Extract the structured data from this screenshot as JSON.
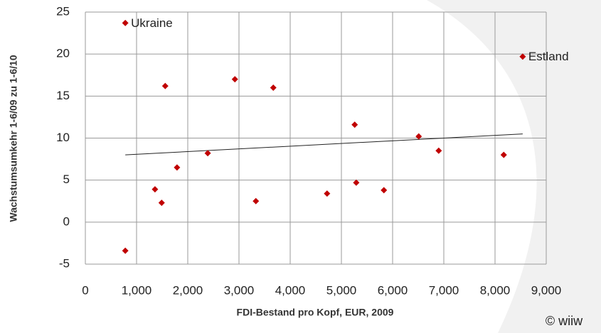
{
  "chart_data": {
    "type": "scatter",
    "xlabel": "FDI-Bestand pro Kopf, EUR, 2009",
    "ylabel": "Wachstumsumkehr 1-6/09 zu 1-6/10",
    "credit": "© wiiw",
    "x": [
      780,
      780,
      1360,
      1490,
      1560,
      1790,
      2390,
      2920,
      3330,
      3670,
      4720,
      5260,
      5290,
      5830,
      6510,
      6900,
      8170,
      8540
    ],
    "values": [
      23.7,
      -3.4,
      3.9,
      2.3,
      16.2,
      6.5,
      8.2,
      17,
      2.5,
      16,
      3.4,
      11.6,
      4.7,
      3.8,
      10.2,
      8.5,
      8,
      19.7
    ],
    "point_labels": [
      "Ukraine",
      null,
      null,
      null,
      null,
      null,
      null,
      null,
      null,
      null,
      null,
      null,
      null,
      null,
      null,
      null,
      null,
      "Estland"
    ],
    "color": "#c00000",
    "trendline": {
      "x": [
        780,
        8540
      ],
      "values": [
        8.0,
        10.5
      ],
      "color": "#222222"
    },
    "xlim": [
      0,
      9000
    ],
    "xticks": [
      0,
      {
        "value": 1000,
        "label": "1,000"
      },
      {
        "value": 2000,
        "label": "2,000"
      },
      {
        "value": 3000,
        "label": "3,000"
      },
      {
        "value": 4000,
        "label": "4,000"
      },
      {
        "value": 5000,
        "label": "5,000"
      },
      {
        "value": 6000,
        "label": "6,000"
      },
      {
        "value": 7000,
        "label": "7,000"
      },
      {
        "value": 8000,
        "label": "8,000"
      },
      {
        "value": 9000,
        "label": "9,000"
      }
    ],
    "ylim": [
      -5,
      25
    ],
    "yticks": [
      -5,
      0,
      5,
      10,
      15,
      20,
      25
    ],
    "grid": true
  }
}
